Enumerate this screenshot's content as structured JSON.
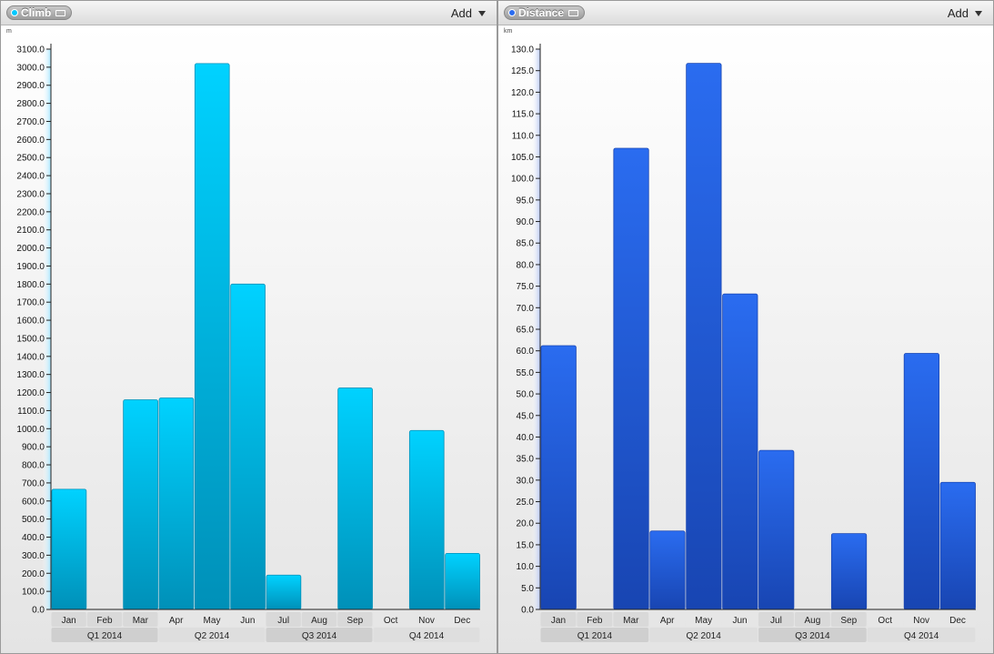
{
  "panels": [
    {
      "title": "Climb",
      "add_label": "Add",
      "chart_data": {
        "type": "bar",
        "unit": "m",
        "categories": [
          "Jan",
          "Feb",
          "Mar",
          "Apr",
          "May",
          "Jun",
          "Jul",
          "Aug",
          "Sep",
          "Oct",
          "Nov",
          "Dec"
        ],
        "values": [
          665,
          0,
          1160,
          1170,
          3020,
          1800,
          190,
          0,
          1225,
          0,
          990,
          310
        ],
        "ylim": [
          0,
          3100
        ],
        "ytick_step": 100,
        "yticks": [
          "0.0",
          "100.0",
          "200.0",
          "300.0",
          "400.0",
          "500.0",
          "600.0",
          "700.0",
          "800.0",
          "900.0",
          "1000.0",
          "1100.0",
          "1200.0",
          "1300.0",
          "1400.0",
          "1500.0",
          "1600.0",
          "1700.0",
          "1800.0",
          "1900.0",
          "2000.0",
          "2100.0",
          "2200.0",
          "2300.0",
          "2400.0",
          "2500.0",
          "2600.0",
          "2700.0",
          "2800.0",
          "2900.0",
          "3000.0",
          "3100.0"
        ],
        "groups": [
          "Q1 2014",
          "Q2 2014",
          "Q3 2014",
          "Q4 2014"
        ],
        "colors": {
          "bar_top": "#00d2ff",
          "bar_bottom": "#0090b8",
          "axis_band": "#a8e6ff"
        }
      }
    },
    {
      "title": "Distance",
      "add_label": "Add",
      "chart_data": {
        "type": "bar",
        "unit": "km",
        "categories": [
          "Jan",
          "Feb",
          "Mar",
          "Apr",
          "May",
          "Jun",
          "Jul",
          "Aug",
          "Sep",
          "Oct",
          "Nov",
          "Dec"
        ],
        "values": [
          61.2,
          0,
          107.0,
          18.2,
          126.7,
          73.2,
          36.9,
          0,
          17.6,
          0,
          59.4,
          29.5
        ],
        "ylim": [
          0,
          130
        ],
        "ytick_step": 5,
        "yticks": [
          "0.0",
          "5.0",
          "10.0",
          "15.0",
          "20.0",
          "25.0",
          "30.0",
          "35.0",
          "40.0",
          "45.0",
          "50.0",
          "55.0",
          "60.0",
          "65.0",
          "70.0",
          "75.0",
          "80.0",
          "85.0",
          "90.0",
          "95.0",
          "100.0",
          "105.0",
          "110.0",
          "115.0",
          "120.0",
          "125.0",
          "130.0"
        ],
        "groups": [
          "Q1 2014",
          "Q2 2014",
          "Q3 2014",
          "Q4 2014"
        ],
        "colors": {
          "bar_top": "#2a6cf0",
          "bar_bottom": "#1845b2",
          "axis_band": "#b9c9f4"
        }
      }
    }
  ]
}
